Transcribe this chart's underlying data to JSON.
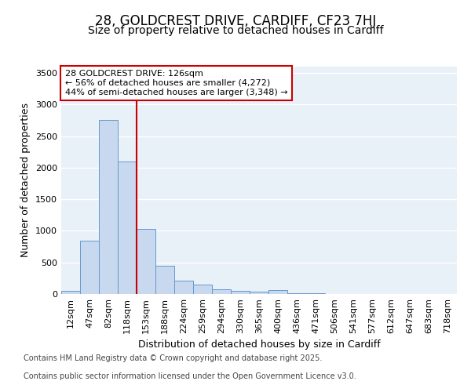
{
  "title_line1": "28, GOLDCREST DRIVE, CARDIFF, CF23 7HJ",
  "title_line2": "Size of property relative to detached houses in Cardiff",
  "xlabel": "Distribution of detached houses by size in Cardiff",
  "ylabel": "Number of detached properties",
  "categories": [
    "12sqm",
    "47sqm",
    "82sqm",
    "118sqm",
    "153sqm",
    "188sqm",
    "224sqm",
    "259sqm",
    "294sqm",
    "330sqm",
    "365sqm",
    "400sqm",
    "436sqm",
    "471sqm",
    "506sqm",
    "541sqm",
    "577sqm",
    "612sqm",
    "647sqm",
    "683sqm",
    "718sqm"
  ],
  "values": [
    55,
    850,
    2760,
    2100,
    1030,
    450,
    210,
    145,
    75,
    55,
    40,
    60,
    15,
    8,
    0,
    0,
    0,
    0,
    0,
    0,
    0
  ],
  "bar_color": "#c8d8ee",
  "bar_edge_color": "#6699cc",
  "red_line_x": 3.5,
  "red_line_color": "#cc0000",
  "annotation_text_line1": "28 GOLDCREST DRIVE: 126sqm",
  "annotation_text_line2": "← 56% of detached houses are smaller (4,272)",
  "annotation_text_line3": "44% of semi-detached houses are larger (3,348) →",
  "annotation_box_edge_color": "#cc0000",
  "annotation_box_fill": "#ffffff",
  "ylim": [
    0,
    3600
  ],
  "yticks": [
    0,
    500,
    1000,
    1500,
    2000,
    2500,
    3000,
    3500
  ],
  "bg_color": "#ffffff",
  "plot_bg_color": "#e8f0f8",
  "grid_color": "#ffffff",
  "footer_line1": "Contains HM Land Registry data © Crown copyright and database right 2025.",
  "footer_line2": "Contains public sector information licensed under the Open Government Licence v3.0.",
  "title_fontsize": 12,
  "subtitle_fontsize": 10,
  "axis_label_fontsize": 9,
  "tick_fontsize": 8,
  "annotation_fontsize": 8,
  "footer_fontsize": 7
}
